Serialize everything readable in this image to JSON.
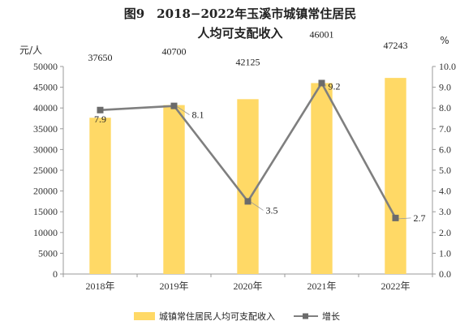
{
  "chart_data": {
    "type": "bar",
    "title_line1": "图9　2018−2022年玉溪市城镇常住居民",
    "title_line2": "人均可支配收入",
    "y_left_unit": "元/人",
    "y_right_unit": "%",
    "categories": [
      "2018年",
      "2019年",
      "2020年",
      "2021年",
      "2022年"
    ],
    "series": [
      {
        "name": "城镇常住居民人均可支配收入",
        "kind": "bar",
        "axis": "left",
        "color": "#FFD966",
        "values": [
          37650,
          40700,
          42125,
          46001,
          47243
        ],
        "labels": [
          "37650",
          "40700",
          "42125",
          "46001",
          "47243"
        ]
      },
      {
        "name": "增长",
        "kind": "line",
        "axis": "right",
        "color": "#7F7F7F",
        "values": [
          7.9,
          8.1,
          3.5,
          9.2,
          2.7
        ],
        "labels": [
          "7.9",
          "8.1",
          "3.5",
          "9.2",
          "2.7"
        ]
      }
    ],
    "ylim_left": [
      0,
      50000
    ],
    "yticks_left": [
      "0",
      "5000",
      "10000",
      "15000",
      "20000",
      "25000",
      "30000",
      "35000",
      "40000",
      "45000",
      "50000"
    ],
    "ylim_right": [
      0,
      10
    ],
    "yticks_right": [
      "0.0",
      "1.0",
      "2.0",
      "3.0",
      "4.0",
      "5.0",
      "6.0",
      "7.0",
      "8.0",
      "9.0",
      "10.0"
    ],
    "grid": false,
    "legend": "bottom"
  }
}
